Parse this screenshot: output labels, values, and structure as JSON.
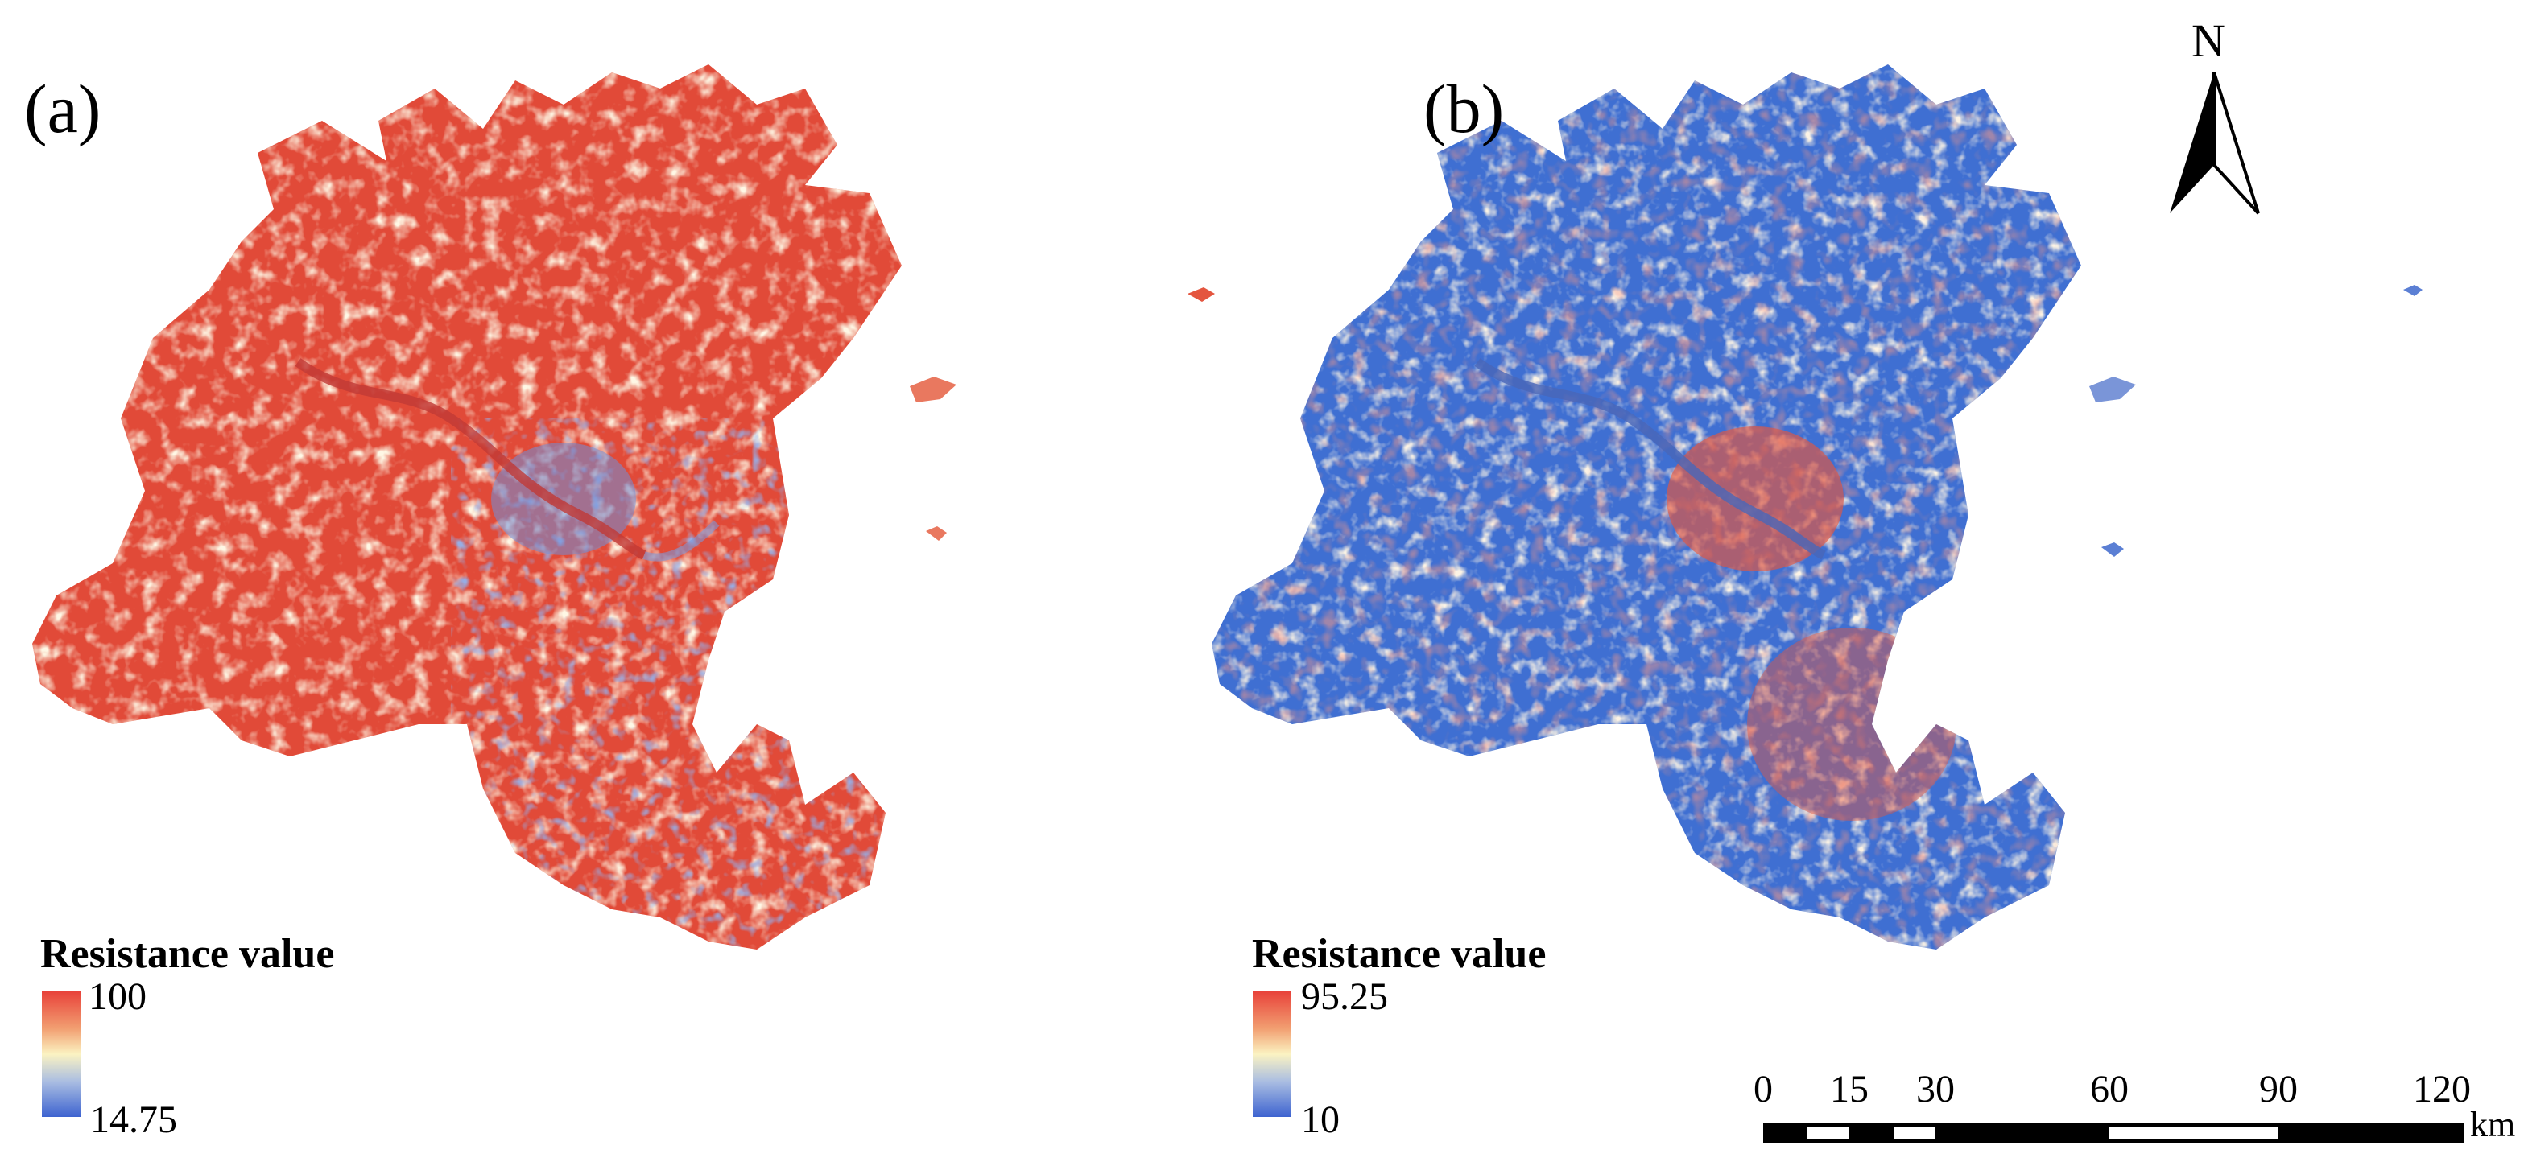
{
  "panels": [
    {
      "label": "(a)",
      "legend": {
        "title": "Resistance value",
        "max": "100",
        "min": "14.75"
      },
      "dominant_color": "#e24b3a"
    },
    {
      "label": "(b)",
      "legend": {
        "title": "Resistance value",
        "max": "95.25",
        "min": "10"
      },
      "dominant_color": "#3f6fd2"
    }
  ],
  "north_arrow": {
    "label": "N"
  },
  "scale_bar": {
    "unit": "km",
    "ticks": [
      "0",
      "15",
      "30",
      "60",
      "90",
      "120"
    ]
  },
  "colors": {
    "high": "#e8423a",
    "mid": "#fbf3c2",
    "low": "#3d63d0"
  }
}
